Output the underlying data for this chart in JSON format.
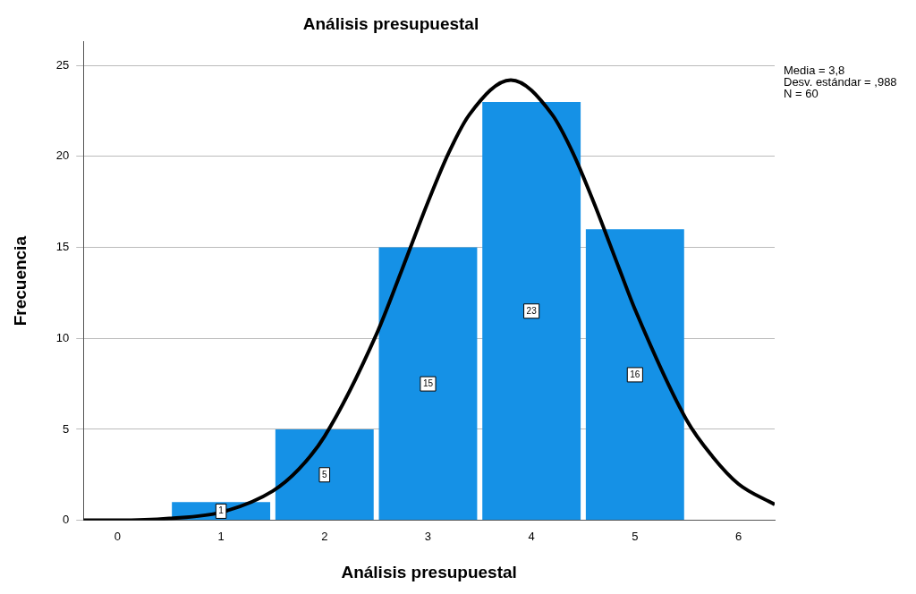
{
  "chart_data": {
    "type": "histogram",
    "title": "Análisis presupuestal",
    "xlabel": "Análisis presupuestal",
    "ylabel": "Frecuencia",
    "bins": [
      0.5,
      1.5,
      2.5,
      3.5,
      4.5,
      5.5
    ],
    "values": [
      1,
      5,
      15,
      23,
      16
    ],
    "color": "#1591e6",
    "value_labels": [
      "1",
      "5",
      "15",
      "23",
      "16"
    ],
    "series": [
      {
        "type": "line",
        "color": "#000000",
        "x": [
          -0.33,
          0,
          0.5,
          1,
          1.5,
          1.75,
          2,
          2.5,
          2.75,
          3,
          3.2,
          3.4,
          3.8,
          4.2,
          4.4,
          4.6,
          4.85,
          5,
          5.5,
          5.75,
          6,
          6.35
        ],
        "values": [
          0,
          0,
          0.1,
          0.44,
          1.61,
          2.8,
          4.61,
          10.2,
          13.8,
          17.5,
          20.2,
          22.3,
          24.2,
          22.3,
          20.2,
          17.5,
          13.8,
          11.6,
          5.5,
          3.5,
          2.0,
          0.87
        ]
      }
    ],
    "xlim": [
      -0.33,
      6.35
    ],
    "xticks": [
      0,
      1,
      2,
      3,
      4,
      5,
      6
    ],
    "ylim": [
      0,
      26.3
    ],
    "yticks": [
      0,
      5,
      10,
      15,
      20,
      25
    ],
    "grid": "y",
    "annotations": [
      "Media = 3,8",
      "Desv. estándar = ,988",
      "N = 60"
    ]
  }
}
